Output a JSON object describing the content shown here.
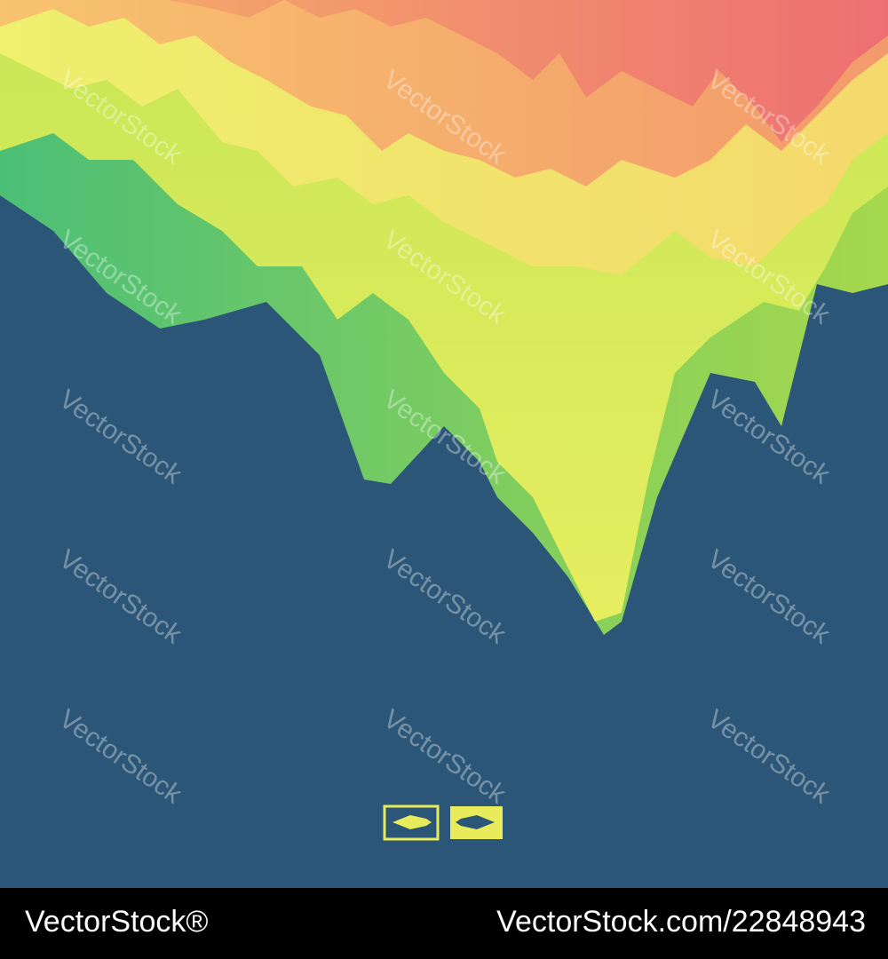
{
  "watermark": "VectorStock",
  "footer": {
    "brand": "VectorStock®",
    "url": "VectorStock.com/22848943"
  }
}
